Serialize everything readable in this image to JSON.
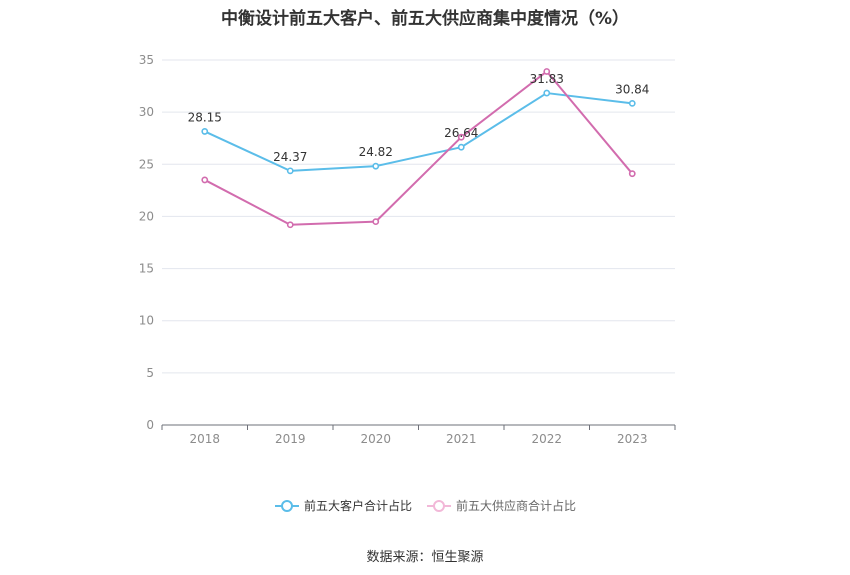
{
  "chart_data": {
    "type": "line",
    "title": "中衡设计前五大客户、前五大供应商集中度情况（%）",
    "categories": [
      "2018",
      "2019",
      "2020",
      "2021",
      "2022",
      "2023"
    ],
    "series": [
      {
        "name": "前五大客户合计占比",
        "values": [
          28.15,
          24.37,
          24.82,
          26.64,
          31.83,
          30.84
        ],
        "color": "#5bbde9",
        "show_labels": true
      },
      {
        "name": "前五大供应商合计占比",
        "values": [
          23.5,
          19.2,
          19.5,
          27.6,
          33.9,
          24.1
        ],
        "color": "#d26cae",
        "show_labels": false
      }
    ],
    "ylim": [
      0,
      35
    ],
    "yticks": [
      0,
      5,
      10,
      15,
      20,
      25,
      30,
      35
    ],
    "grid": true,
    "legend_position": "bottom"
  },
  "source": "数据来源：恒生聚源"
}
